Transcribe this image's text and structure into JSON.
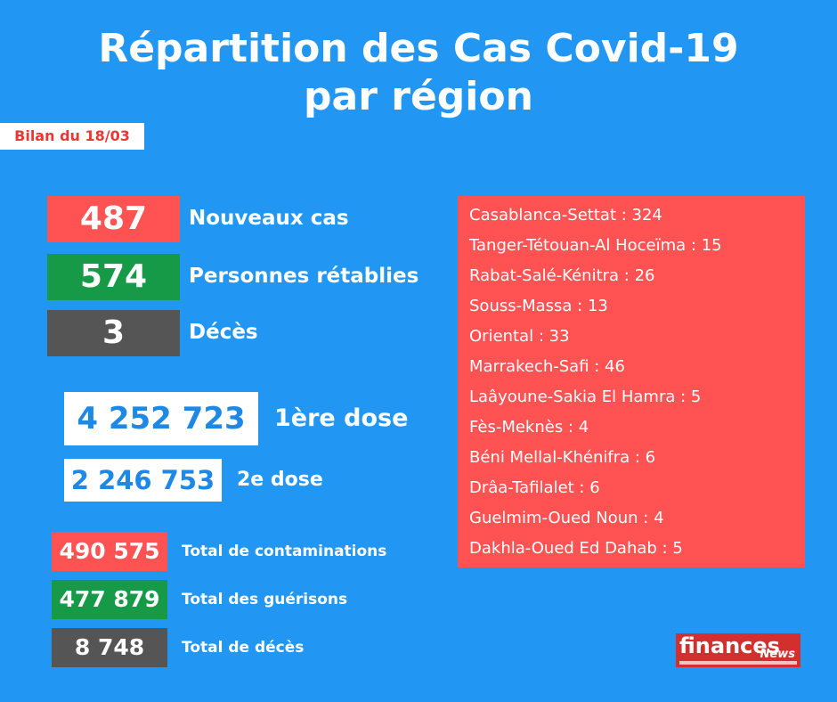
{
  "header": {
    "title_line1": "Répartition des Cas Covid-19",
    "title_line2": "par région",
    "bilan": "Bilan du 18/03"
  },
  "daily": [
    {
      "value": "487",
      "label": "Nouveaux cas",
      "color": "#ff5252"
    },
    {
      "value": "574",
      "label": "Personnes rétablies",
      "color": "#169a47"
    },
    {
      "value": "3",
      "label": "Décès",
      "color": "#555555"
    }
  ],
  "vaccination": [
    {
      "value": "4 252 723",
      "label": "1ère dose"
    },
    {
      "value": "2 246 753",
      "label": "2e dose"
    }
  ],
  "totals": [
    {
      "value": "490 575",
      "label": "Total de contaminations",
      "color": "#ff5252"
    },
    {
      "value": "477 879",
      "label": "Total des guérisons",
      "color": "#169a47"
    },
    {
      "value": "8 748",
      "label": "Total de décès",
      "color": "#555555"
    }
  ],
  "regions": [
    "Casablanca-Settat : 324",
    "Tanger-Tétouan-Al Hoceïma : 15",
    "Rabat-Salé-Kénitra : 26",
    "Souss-Massa : 13",
    "Oriental : 33",
    "Marrakech-Safi : 46",
    "Laâyoune-Sakia El Hamra : 5",
    "Fès-Meknès : 4",
    "Béni Mellal-Khénifra : 6",
    "Drâa-Tafilalet : 6",
    "Guelmim-Oued Noun : 4",
    "Dakhla-Oued Ed Dahab : 5"
  ],
  "logo": {
    "word": "finances",
    "news": "News"
  }
}
